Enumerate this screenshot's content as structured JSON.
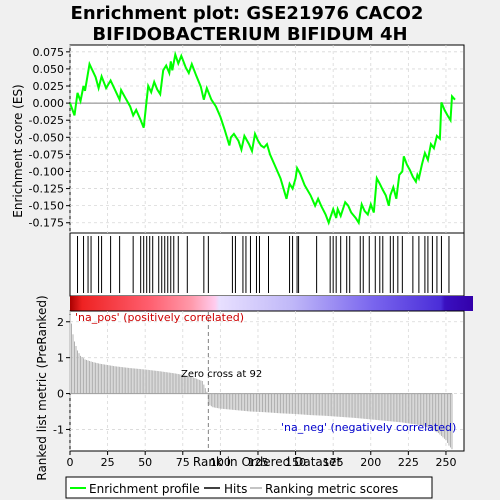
{
  "title_line1": "Enrichment plot: GSE21976 CACO2",
  "title_line2": "BIFIDOBACTERIUM BIFIDUM 4H",
  "chart_data": {
    "type": "line",
    "title": "Enrichment plot: GSE21976 CACO2 BIFIDOBACTERIUM BIFIDUM 4H",
    "xlabel": "Rank in Ordered Dataset",
    "ylabel_top": "Enrichment score (ES)",
    "ylabel_bottom": "Ranked list metric (PreRanked)",
    "x_range": [
      0,
      262
    ],
    "x_ticks": [
      0,
      25,
      50,
      75,
      100,
      125,
      150,
      175,
      200,
      225,
      250
    ],
    "es_range": [
      -0.19,
      0.085
    ],
    "es_ticks": [
      "0.075",
      "0.050",
      "0.025",
      "0.000",
      "-0.025",
      "-0.050",
      "-0.075",
      "-0.100",
      "-0.125",
      "-0.150",
      "-0.175"
    ],
    "es_tick_values": [
      0.075,
      0.05,
      0.025,
      0.0,
      -0.025,
      -0.05,
      -0.075,
      -0.1,
      -0.125,
      -0.15,
      -0.175
    ],
    "metric_range": [
      -1.6,
      2.3
    ],
    "metric_ticks": [
      2,
      1,
      0,
      -1
    ],
    "enrichment_profile": [
      [
        0,
        0.0
      ],
      [
        3,
        -0.018
      ],
      [
        5,
        0.015
      ],
      [
        7,
        0.003
      ],
      [
        9,
        0.025
      ],
      [
        10,
        0.018
      ],
      [
        13,
        0.057
      ],
      [
        17,
        0.038
      ],
      [
        19,
        0.022
      ],
      [
        21,
        0.039
      ],
      [
        24,
        0.022
      ],
      [
        27,
        0.033
      ],
      [
        33,
        0.005
      ],
      [
        34,
        0.019
      ],
      [
        37,
        0.007
      ],
      [
        40,
        -0.005
      ],
      [
        42,
        -0.018
      ],
      [
        44,
        -0.01
      ],
      [
        47,
        -0.025
      ],
      [
        49,
        -0.036
      ],
      [
        52,
        0.025
      ],
      [
        54,
        0.016
      ],
      [
        56,
        0.031
      ],
      [
        58,
        0.02
      ],
      [
        60,
        0.013
      ],
      [
        62,
        0.048
      ],
      [
        64,
        0.055
      ],
      [
        66,
        0.044
      ],
      [
        67,
        0.061
      ],
      [
        68,
        0.048
      ],
      [
        70,
        0.071
      ],
      [
        72,
        0.058
      ],
      [
        74,
        0.069
      ],
      [
        77,
        0.052
      ],
      [
        79,
        0.044
      ],
      [
        81,
        0.057
      ],
      [
        84,
        0.04
      ],
      [
        87,
        0.024
      ],
      [
        89,
        0.005
      ],
      [
        91,
        0.022
      ],
      [
        94,
        0.005
      ],
      [
        97,
        -0.005
      ],
      [
        100,
        -0.02
      ],
      [
        103,
        -0.04
      ],
      [
        106,
        -0.062
      ],
      [
        107,
        -0.05
      ],
      [
        109,
        -0.045
      ],
      [
        112,
        -0.055
      ],
      [
        114,
        -0.068
      ],
      [
        116,
        -0.048
      ],
      [
        119,
        -0.06
      ],
      [
        121,
        -0.07
      ],
      [
        123,
        -0.045
      ],
      [
        125,
        -0.055
      ],
      [
        127,
        -0.062
      ],
      [
        129,
        -0.065
      ],
      [
        131,
        -0.06
      ],
      [
        133,
        -0.075
      ],
      [
        136,
        -0.09
      ],
      [
        140,
        -0.11
      ],
      [
        144,
        -0.14
      ],
      [
        146,
        -0.118
      ],
      [
        148,
        -0.125
      ],
      [
        150,
        -0.11
      ],
      [
        151,
        -0.095
      ],
      [
        153,
        -0.103
      ],
      [
        156,
        -0.12
      ],
      [
        160,
        -0.135
      ],
      [
        163,
        -0.15
      ],
      [
        165,
        -0.14
      ],
      [
        167,
        -0.15
      ],
      [
        170,
        -0.163
      ],
      [
        172,
        -0.175
      ],
      [
        173,
        -0.168
      ],
      [
        175,
        -0.155
      ],
      [
        177,
        -0.168
      ],
      [
        178,
        -0.155
      ],
      [
        180,
        -0.165
      ],
      [
        183,
        -0.145
      ],
      [
        185,
        -0.15
      ],
      [
        187,
        -0.16
      ],
      [
        190,
        -0.168
      ],
      [
        192,
        -0.175
      ],
      [
        194,
        -0.148
      ],
      [
        196,
        -0.158
      ],
      [
        198,
        -0.163
      ],
      [
        200,
        -0.148
      ],
      [
        202,
        -0.16
      ],
      [
        204,
        -0.11
      ],
      [
        206,
        -0.118
      ],
      [
        208,
        -0.127
      ],
      [
        210,
        -0.135
      ],
      [
        212,
        -0.15
      ],
      [
        213,
        -0.135
      ],
      [
        215,
        -0.123
      ],
      [
        217,
        -0.14
      ],
      [
        219,
        -0.105
      ],
      [
        221,
        -0.1
      ],
      [
        222,
        -0.078
      ],
      [
        224,
        -0.09
      ],
      [
        226,
        -0.098
      ],
      [
        228,
        -0.108
      ],
      [
        230,
        -0.115
      ],
      [
        231,
        -0.105
      ],
      [
        232,
        -0.11
      ],
      [
        234,
        -0.09
      ],
      [
        236,
        -0.073
      ],
      [
        238,
        -0.083
      ],
      [
        240,
        -0.06
      ],
      [
        242,
        -0.066
      ],
      [
        244,
        -0.048
      ],
      [
        246,
        -0.052
      ],
      [
        247,
        0.001
      ],
      [
        249,
        -0.01
      ],
      [
        251,
        -0.018
      ],
      [
        253,
        -0.025
      ],
      [
        254,
        0.01
      ],
      [
        256,
        0.005
      ]
    ],
    "hits": [
      5,
      9,
      12,
      14,
      19,
      21,
      27,
      33,
      42,
      47,
      49,
      51,
      53,
      55,
      59,
      61,
      63,
      65,
      67,
      69,
      72,
      78,
      89,
      92,
      108,
      110,
      115,
      117,
      120,
      124,
      126,
      132,
      146,
      148,
      151,
      152,
      164,
      173,
      175,
      177,
      180,
      184,
      186,
      193,
      195,
      199,
      203,
      206,
      208,
      213,
      215,
      218,
      221,
      228,
      232,
      236,
      238,
      241,
      244,
      247,
      252
    ],
    "zero_cross": 92,
    "zero_cross_label": "Zero cross at 92",
    "pos_label": "'na_pos' (positively correlated)",
    "neg_label": "'na_neg' (negatively correlated)",
    "metric_curve": [
      [
        0,
        2.2
      ],
      [
        1,
        1.95
      ],
      [
        2,
        1.65
      ],
      [
        3,
        1.45
      ],
      [
        5,
        1.2
      ],
      [
        7,
        1.05
      ],
      [
        10,
        0.95
      ],
      [
        15,
        0.88
      ],
      [
        20,
        0.83
      ],
      [
        30,
        0.76
      ],
      [
        40,
        0.71
      ],
      [
        50,
        0.67
      ],
      [
        60,
        0.62
      ],
      [
        70,
        0.56
      ],
      [
        80,
        0.48
      ],
      [
        88,
        0.35
      ],
      [
        91,
        0.05
      ],
      [
        92,
        -0.3
      ],
      [
        95,
        -0.38
      ],
      [
        100,
        -0.42
      ],
      [
        110,
        -0.46
      ],
      [
        120,
        -0.5
      ],
      [
        130,
        -0.52
      ],
      [
        140,
        -0.55
      ],
      [
        150,
        -0.57
      ],
      [
        160,
        -0.6
      ],
      [
        170,
        -0.62
      ],
      [
        180,
        -0.65
      ],
      [
        190,
        -0.68
      ],
      [
        200,
        -0.72
      ],
      [
        210,
        -0.76
      ],
      [
        220,
        -0.8
      ],
      [
        230,
        -0.86
      ],
      [
        235,
        -0.9
      ],
      [
        240,
        -0.98
      ],
      [
        245,
        -1.1
      ],
      [
        250,
        -1.3
      ],
      [
        252,
        -1.45
      ],
      [
        254,
        -1.55
      ]
    ],
    "legend": [
      "Enrichment profile",
      "Hits",
      "Ranking metric scores"
    ],
    "colors": {
      "profile": "#00ff00",
      "hits": "#000000",
      "metric": "#b0b0b0",
      "zero_line": "#808080",
      "zero_cross": "#808080",
      "pos_text": "#cc0000",
      "neg_text": "#0000cc"
    }
  }
}
